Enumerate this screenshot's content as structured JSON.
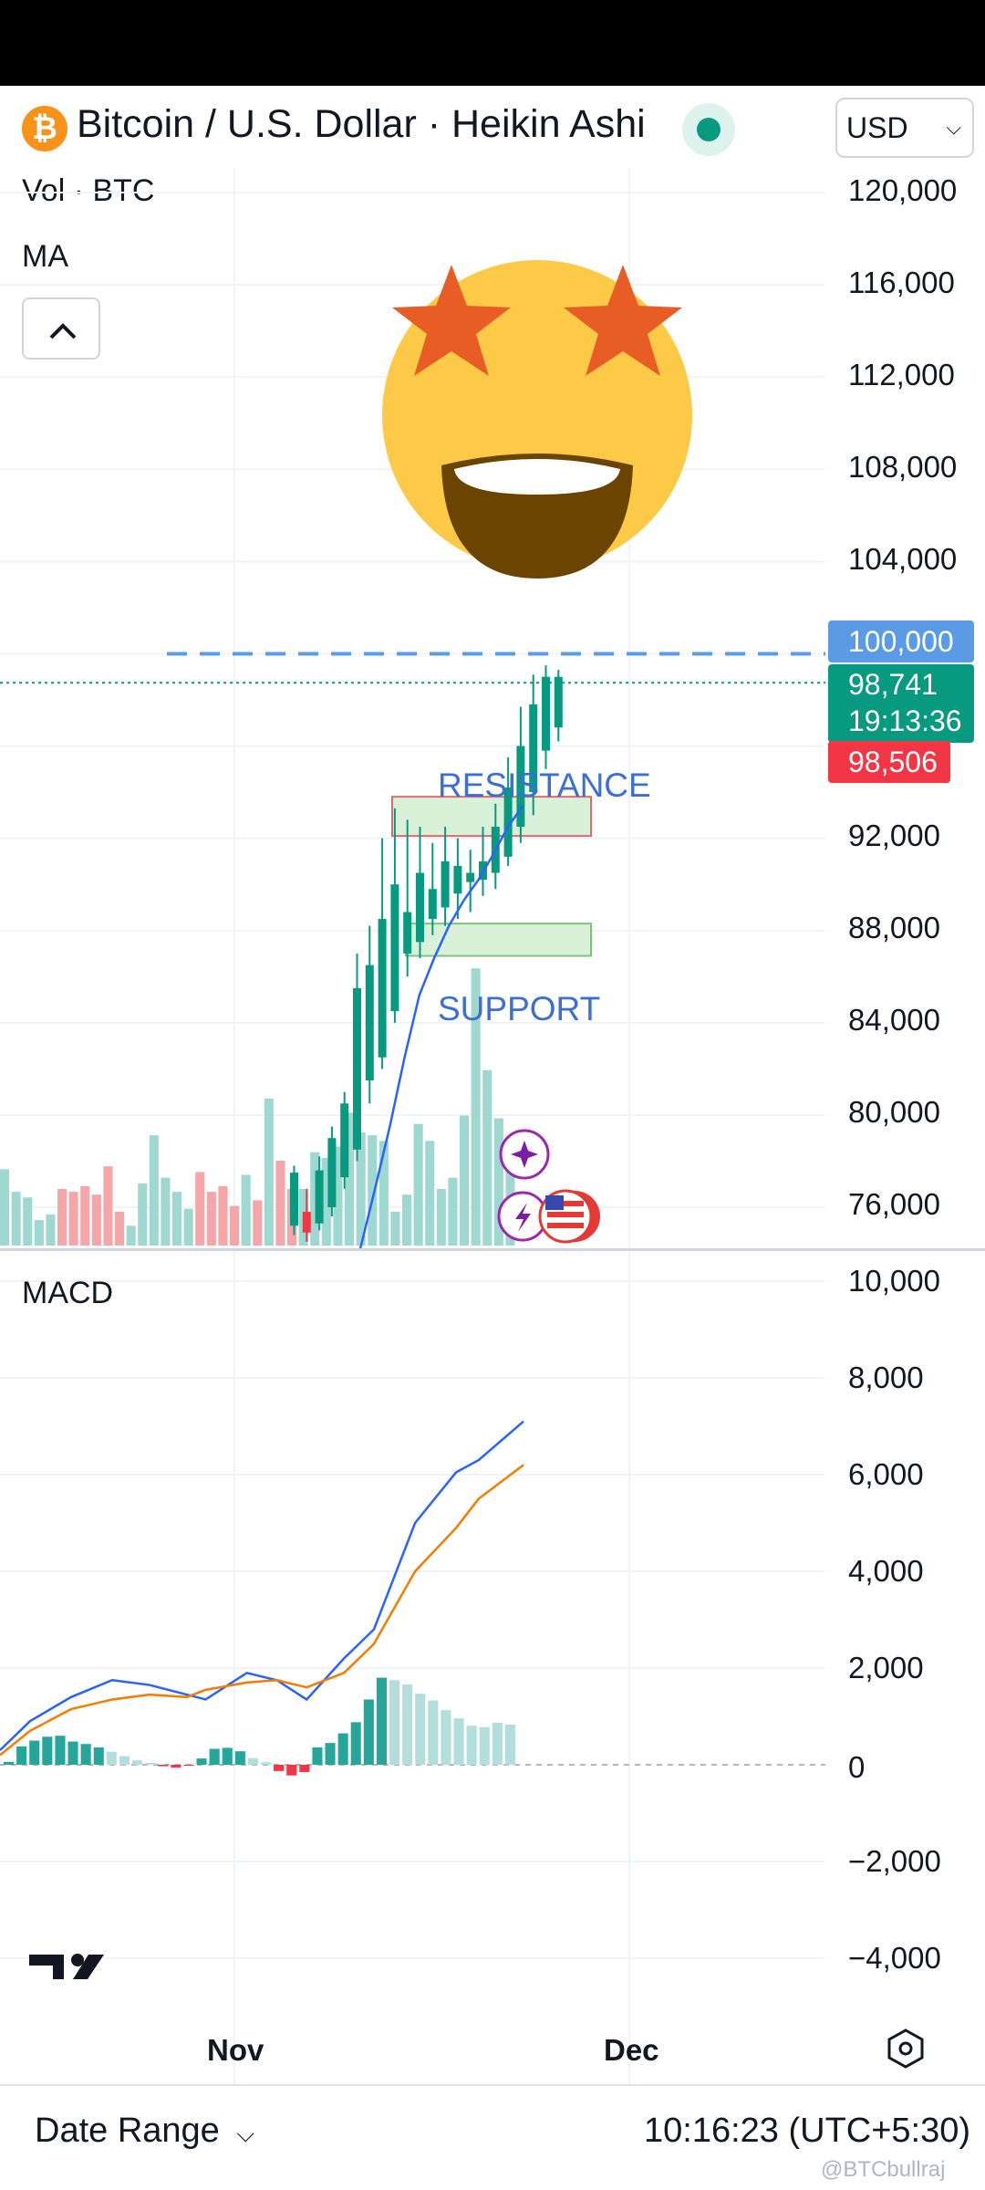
{
  "header": {
    "symbol_icon": "bitcoin-icon",
    "title": "Bitcoin / U.S. Dollar · Heikin Ashi",
    "currency": "USD",
    "legend_volume": "Vol · BTC",
    "legend_ma": "MA"
  },
  "price_axis": {
    "labels": [
      "120,000",
      "116,000",
      "112,000",
      "108,000",
      "104,000",
      "92,000",
      "88,000",
      "84,000",
      "80,000",
      "76,000"
    ],
    "target_badge": "100,000",
    "last_price": "98,741",
    "countdown": "19:13:36",
    "bid_badge": "98,506"
  },
  "annotations": {
    "resistance": "RESISTANCE",
    "support": "SUPPORT"
  },
  "macd": {
    "label": "MACD",
    "axis_labels": [
      "10,000",
      "8,000",
      "6,000",
      "4,000",
      "2,000",
      "0",
      "−2,000",
      "−4,000"
    ]
  },
  "time_axis": {
    "labels": [
      "Nov",
      "Dec"
    ]
  },
  "footer": {
    "date_range": "Date Range",
    "clock": "10:16:23 (UTC+5:30)",
    "watermark": "@BTCbullraj"
  },
  "colors": {
    "up": "#089981",
    "down": "#f23645",
    "vol_up": "#9fd8d0",
    "vol_down": "#f4a6a8",
    "ma": "#2962ff",
    "signal": "#f57c00",
    "target_line": "#5b9be6",
    "annotation": "#3b6fd6"
  },
  "chart_data": [
    {
      "type": "candlestick",
      "title": "Bitcoin / U.S. Dollar · Heikin Ashi",
      "ylim": [
        74000,
        122000
      ],
      "x_labels": [
        "Nov",
        "Dec"
      ],
      "candles": [
        {
          "o": 75200,
          "c": 77500,
          "h": 77800,
          "l": 74800
        },
        {
          "o": 75800,
          "c": 74900,
          "h": 76800,
          "l": 74500
        },
        {
          "o": 75300,
          "c": 77600,
          "h": 78200,
          "l": 75000
        },
        {
          "o": 76000,
          "c": 79000,
          "h": 79500,
          "l": 75600
        },
        {
          "o": 77300,
          "c": 80500,
          "h": 81000,
          "l": 76800
        },
        {
          "o": 78500,
          "c": 85500,
          "h": 87000,
          "l": 78000
        },
        {
          "o": 81500,
          "c": 86500,
          "h": 88200,
          "l": 80500
        },
        {
          "o": 82500,
          "c": 88500,
          "h": 92000,
          "l": 82000
        },
        {
          "o": 84500,
          "c": 90000,
          "h": 93300,
          "l": 84000
        },
        {
          "o": 87000,
          "c": 88800,
          "h": 92800,
          "l": 86000
        },
        {
          "o": 87500,
          "c": 90500,
          "h": 92500,
          "l": 86800
        },
        {
          "o": 88500,
          "c": 89800,
          "h": 91800,
          "l": 87800
        },
        {
          "o": 89000,
          "c": 91000,
          "h": 92500,
          "l": 88200
        },
        {
          "o": 89600,
          "c": 90800,
          "h": 92000,
          "l": 88500
        },
        {
          "o": 90100,
          "c": 90500,
          "h": 91500,
          "l": 88800
        },
        {
          "o": 90200,
          "c": 91000,
          "h": 92500,
          "l": 89500
        },
        {
          "o": 90500,
          "c": 92500,
          "h": 93500,
          "l": 89800
        },
        {
          "o": 91200,
          "c": 94200,
          "h": 95500,
          "l": 90800
        },
        {
          "o": 92500,
          "c": 96000,
          "h": 97700,
          "l": 91800
        },
        {
          "o": 94000,
          "c": 97800,
          "h": 99100,
          "l": 93000
        },
        {
          "o": 95800,
          "c": 99000,
          "h": 99500,
          "l": 95000
        },
        {
          "o": 96800,
          "c": 99000,
          "h": 99300,
          "l": 96200
        }
      ],
      "volume": [
        {
          "v": 0.27,
          "up": true
        },
        {
          "v": 0.19,
          "up": true
        },
        {
          "v": 0.17,
          "up": true
        },
        {
          "v": 0.09,
          "up": true
        },
        {
          "v": 0.11,
          "up": true
        },
        {
          "v": 0.2,
          "up": false
        },
        {
          "v": 0.19,
          "up": false
        },
        {
          "v": 0.21,
          "up": false
        },
        {
          "v": 0.18,
          "up": false
        },
        {
          "v": 0.28,
          "up": false
        },
        {
          "v": 0.12,
          "up": false
        },
        {
          "v": 0.07,
          "up": true
        },
        {
          "v": 0.22,
          "up": true
        },
        {
          "v": 0.39,
          "up": true
        },
        {
          "v": 0.24,
          "up": true
        },
        {
          "v": 0.19,
          "up": true
        },
        {
          "v": 0.13,
          "up": true
        },
        {
          "v": 0.26,
          "up": false
        },
        {
          "v": 0.19,
          "up": false
        },
        {
          "v": 0.21,
          "up": false
        },
        {
          "v": 0.14,
          "up": false
        },
        {
          "v": 0.25,
          "up": true
        },
        {
          "v": 0.16,
          "up": false
        },
        {
          "v": 0.52,
          "up": true
        },
        {
          "v": 0.3,
          "up": false
        },
        {
          "v": 0.2,
          "up": false
        },
        {
          "v": 0.2,
          "up": true
        },
        {
          "v": 0.33,
          "up": true
        },
        {
          "v": 0.31,
          "up": true
        },
        {
          "v": 0.35,
          "up": true
        },
        {
          "v": 0.47,
          "up": true
        },
        {
          "v": 0.4,
          "up": true
        },
        {
          "v": 0.39,
          "up": true
        },
        {
          "v": 0.37,
          "up": true
        },
        {
          "v": 0.12,
          "up": true
        },
        {
          "v": 0.18,
          "up": true
        },
        {
          "v": 0.43,
          "up": true
        },
        {
          "v": 0.37,
          "up": true
        },
        {
          "v": 0.2,
          "up": true
        },
        {
          "v": 0.24,
          "up": true
        },
        {
          "v": 0.46,
          "up": true
        },
        {
          "v": 0.98,
          "up": true
        },
        {
          "v": 0.62,
          "up": true
        },
        {
          "v": 0.45,
          "up": true
        },
        {
          "v": 0.33,
          "up": true
        }
      ],
      "ma_line": [
        74200,
        76800,
        79500,
        82500,
        85200,
        86800,
        88200,
        89300,
        90200,
        91300,
        92500,
        93400
      ],
      "levels": {
        "target": 100000,
        "resistance_zone": [
          92100,
          93800
        ],
        "support_zone": [
          86900,
          88300
        ]
      }
    },
    {
      "type": "line",
      "title": "MACD",
      "ylim": [
        -4800,
        10200
      ],
      "series": [
        {
          "values": [
            300,
            900,
            1400,
            1750,
            1650,
            1450,
            1350,
            1900,
            1750,
            1350,
            2200,
            2800,
            5000,
            6050,
            6300,
            7100
          ]
        },
        {
          "values": [
            200,
            700,
            1150,
            1350,
            1450,
            1400,
            1550,
            1700,
            1750,
            1600,
            1900,
            2500,
            4000,
            4900,
            5500,
            6200
          ]
        }
      ],
      "histogram": [
        60,
        380,
        500,
        580,
        600,
        480,
        430,
        360,
        270,
        180,
        90,
        40,
        -30,
        -60,
        -20,
        130,
        330,
        350,
        280,
        140,
        50,
        -130,
        -220,
        -150,
        360,
        450,
        650,
        880,
        1350,
        1800,
        1750,
        1660,
        1470,
        1330,
        1130,
        960,
        810,
        780,
        870,
        830
      ]
    }
  ]
}
